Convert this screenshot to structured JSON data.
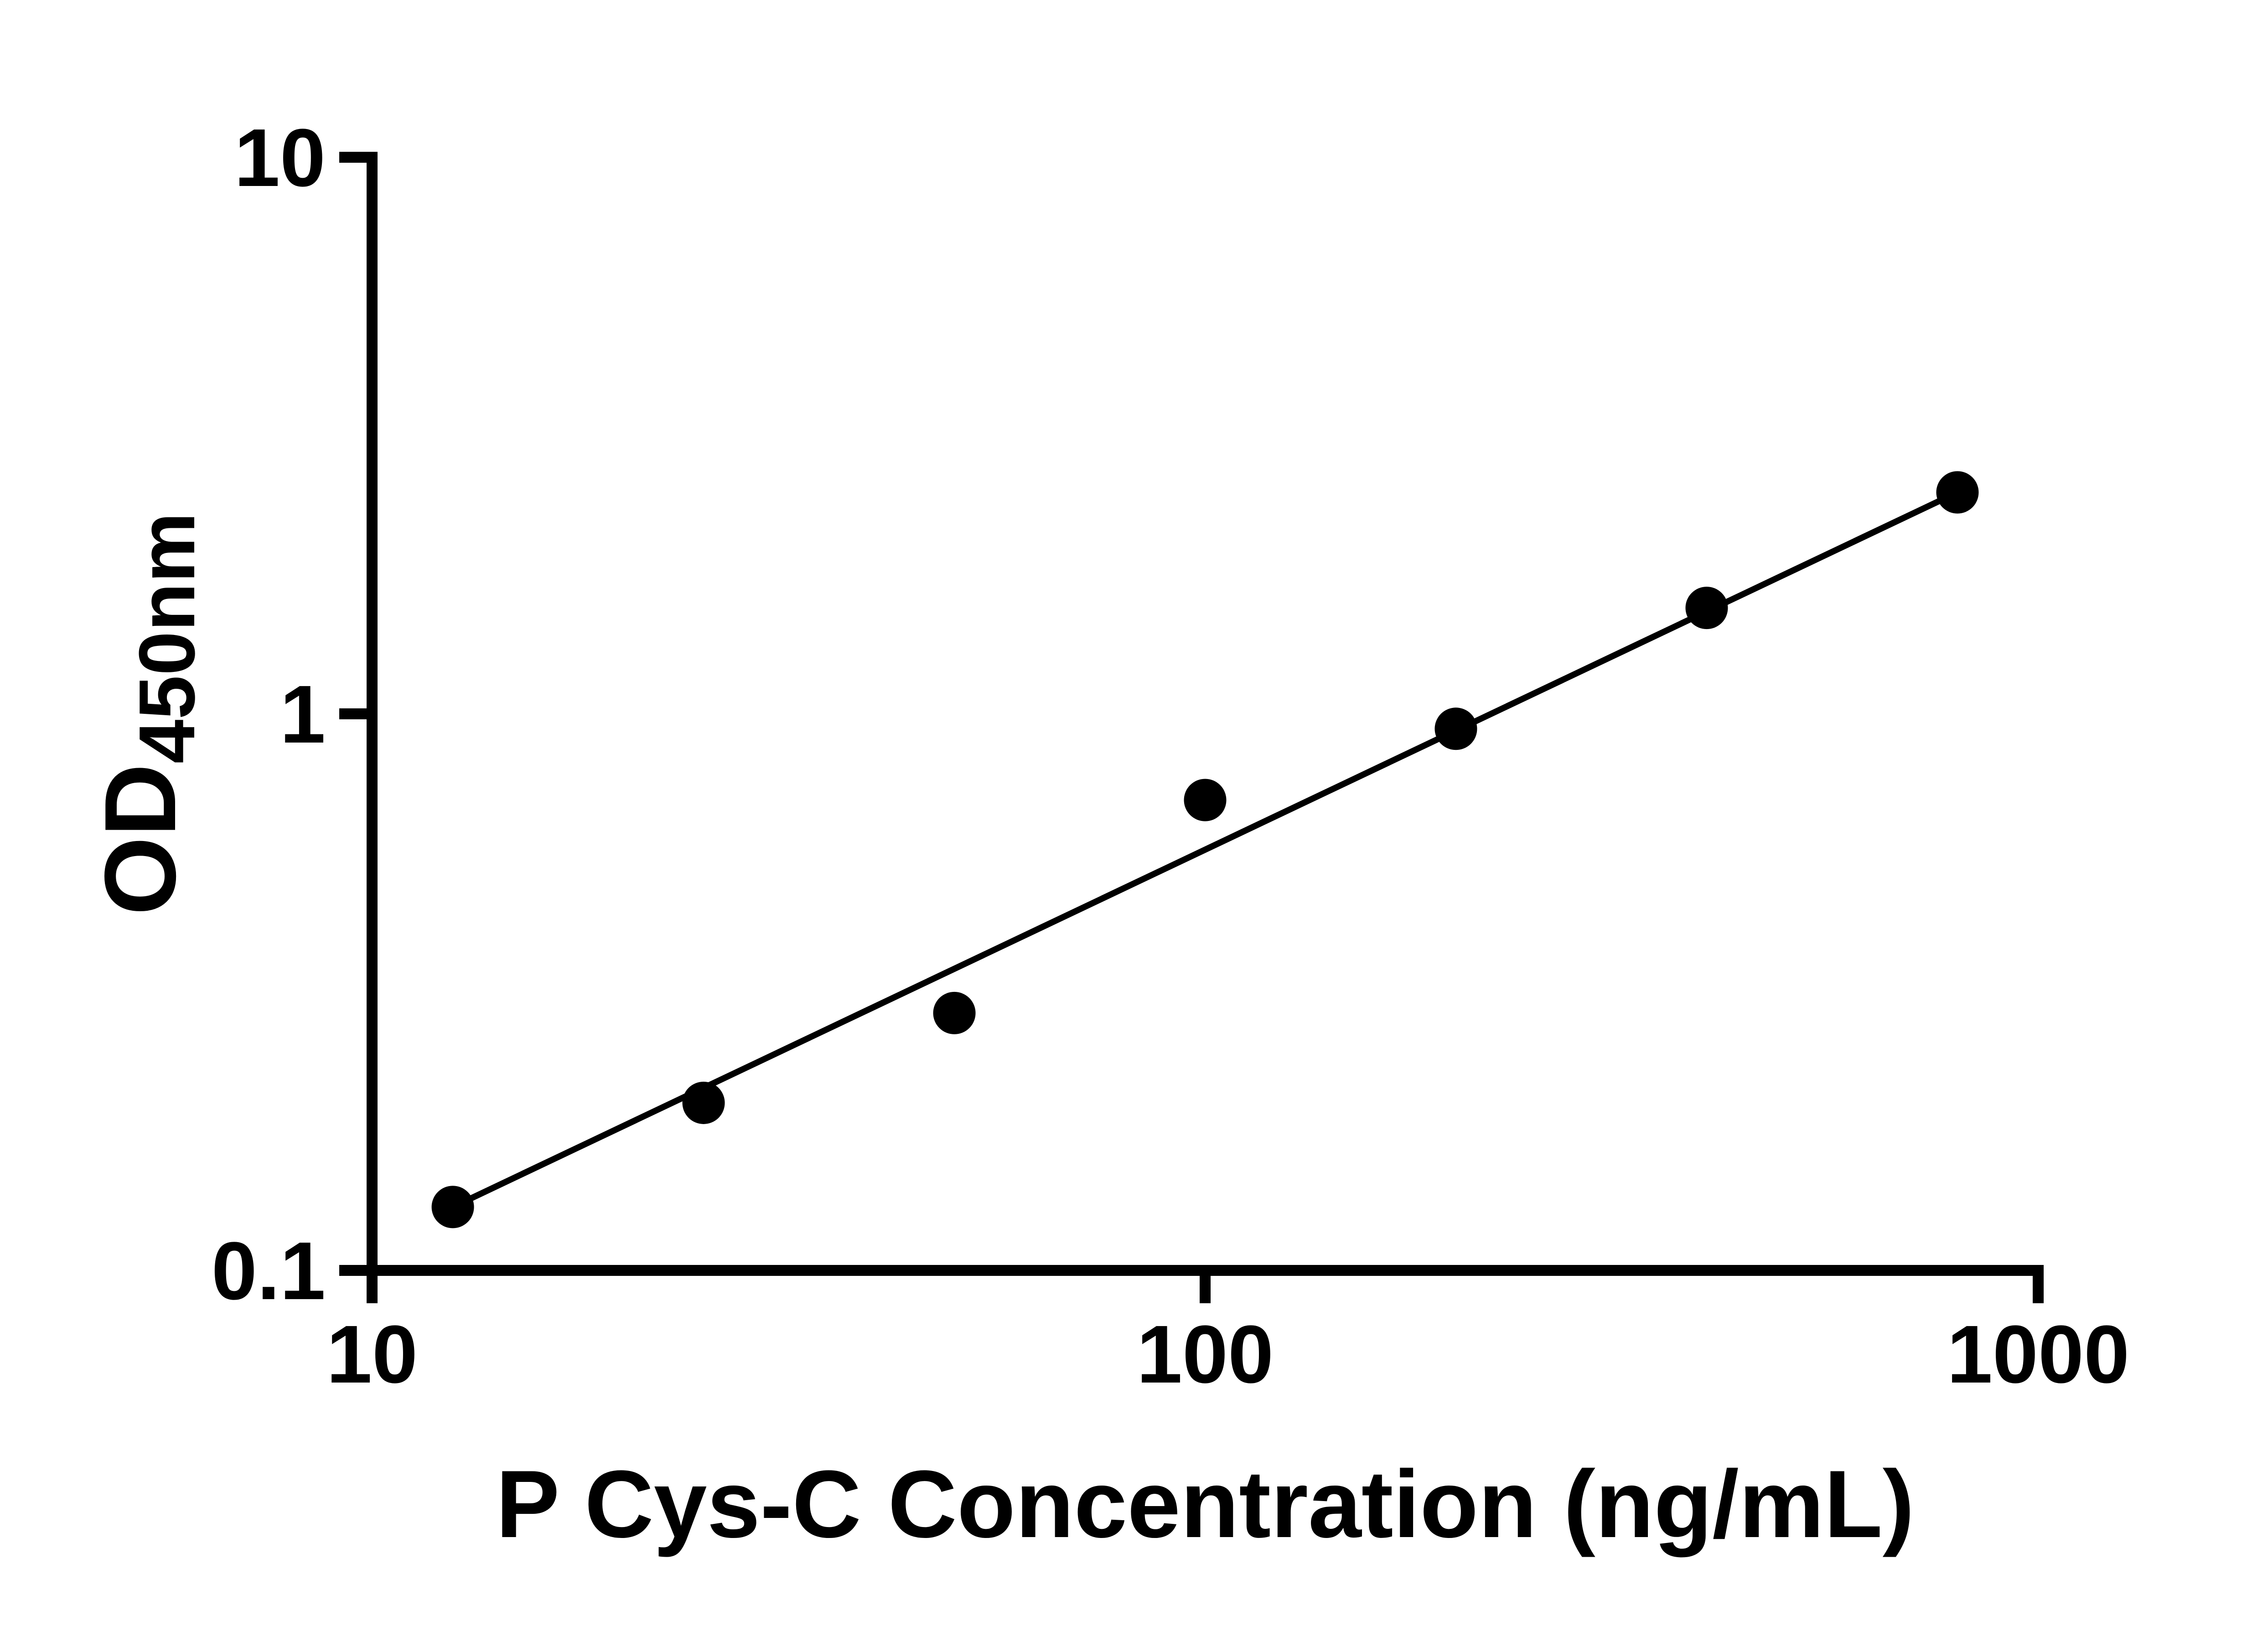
{
  "figure": {
    "background_color": "#ffffff"
  },
  "chart_data": {
    "type": "scatter",
    "title": "",
    "xlabel": "P Cys-C Concentration (ng/mL)",
    "ylabel_main": "OD",
    "ylabel_sub": "450nm",
    "x_scale": "log",
    "y_scale": "log",
    "xlim": [
      10,
      1000
    ],
    "ylim": [
      0.1,
      10
    ],
    "x_ticks": [
      "10",
      "100",
      "1000"
    ],
    "x_tick_values": [
      10,
      100,
      1000
    ],
    "y_ticks": [
      "10",
      "1",
      "0.1"
    ],
    "y_tick_values": [
      10,
      1,
      0.1
    ],
    "grid": false,
    "legend": "none",
    "points": {
      "x": [
        12.5,
        25,
        50,
        100,
        200,
        400,
        800
      ],
      "y": [
        0.13,
        0.2,
        0.29,
        0.7,
        0.94,
        1.55,
        2.5
      ]
    },
    "trendline": {
      "type": "power-fit (straight on log-log)",
      "x": [
        12.5,
        800
      ],
      "y": [
        0.13,
        2.5
      ]
    },
    "marker_color": "#000000",
    "line_color": "#000000",
    "axis_color": "#000000"
  }
}
